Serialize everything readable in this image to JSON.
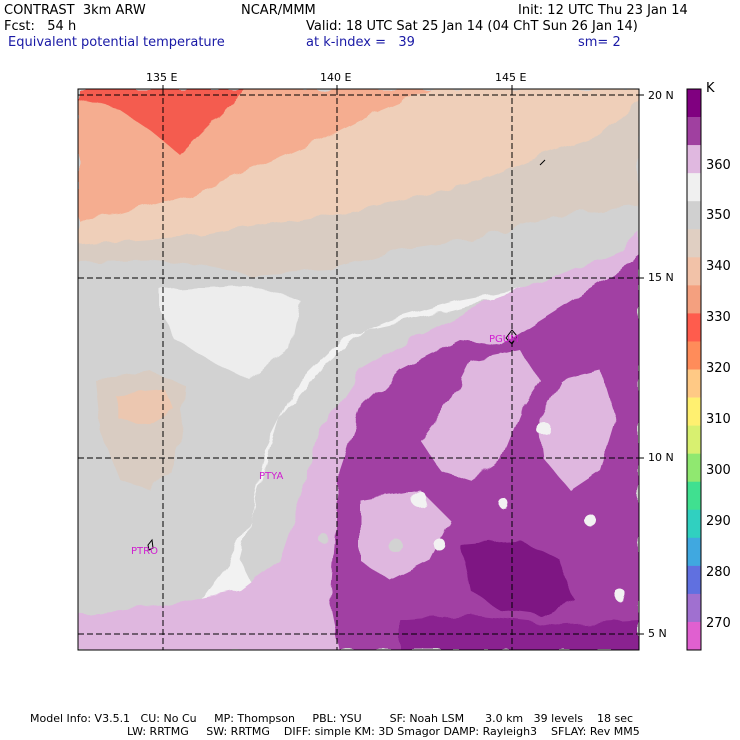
{
  "header": {
    "model": "CONTRAST  3km ARW",
    "org": "NCAR/MMM",
    "init": "Init: 12 UTC Thu 23 Jan 14",
    "fcst": "Fcst:   54 h",
    "valid": "Valid: 18 UTC Sat 25 Jan 14 (04 ChT Sun 26 Jan 14)",
    "field": "Equivalent potential temperature",
    "level": "at k-index =   39",
    "smooth": "sm= 2"
  },
  "map": {
    "lon_labels": [
      "135 E",
      "140 E",
      "145 E"
    ],
    "lat_labels": [
      "20 N",
      "15 N",
      "10 N",
      "5 N"
    ],
    "stations": [
      "PGUM",
      "PTYA",
      "PTRO"
    ]
  },
  "colorbar": {
    "unit": "K",
    "labels": [
      "360",
      "350",
      "340",
      "330",
      "320",
      "310",
      "300",
      "290",
      "280",
      "270"
    ],
    "colors": [
      "#800080",
      "#a040a0",
      "#e0b8e0",
      "#f0f0f0",
      "#d0d0d0",
      "#e0cfc2",
      "#f2c2a8",
      "#f4a07f",
      "#ff5c4d",
      "#ff8c5a",
      "#ffc985",
      "#fff070",
      "#d8f070",
      "#90e870",
      "#40e090",
      "#30d0c0",
      "#40a8e0",
      "#6070e0",
      "#a070d0",
      "#e060d0"
    ]
  },
  "footer": {
    "line1": "Model Info: V3.5.1   CU: No Cu     MP: Thompson     PBL: YSU        SF: Noah LSM      3.0 km   39 levels    18 sec",
    "line2": "LW: RRTMG     SW: RRTMG    DIFF: simple KM: 3D Smagor DAMP: Rayleigh3    SFLAY: Rev MM5"
  }
}
